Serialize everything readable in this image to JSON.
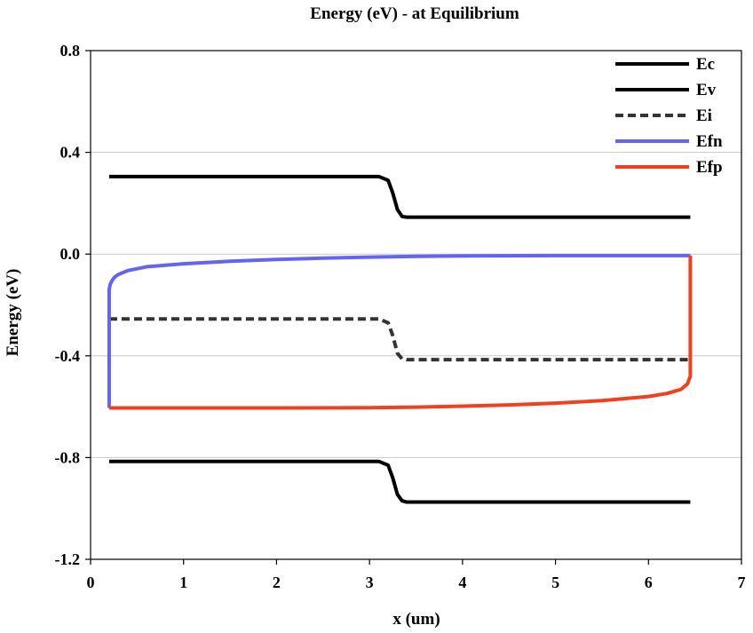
{
  "chart_data": {
    "type": "line",
    "title": "Energy (eV) - at Equilibrium",
    "xlabel": "x (um)",
    "ylabel": "Energy (eV)",
    "xlim": [
      0,
      7
    ],
    "ylim": [
      -1.2,
      0.8
    ],
    "xticks": [
      0,
      1,
      2,
      3,
      4,
      5,
      6,
      7
    ],
    "yticks": [
      0.8,
      0.4,
      0.0,
      -0.4,
      -0.8,
      -1.2
    ],
    "ytick_labels": [
      "0.8",
      "0.4",
      "0.0",
      "-0.4",
      "-0.8",
      "-1.2"
    ],
    "grid": "horizontal",
    "legend_position": "top-right",
    "series": [
      {
        "name": "Ec",
        "color": "#000000",
        "dash": "solid",
        "x": [
          0.2,
          3.1,
          3.2,
          3.25,
          3.3,
          3.35,
          3.4,
          6.45
        ],
        "y": [
          0.305,
          0.305,
          0.29,
          0.24,
          0.175,
          0.148,
          0.145,
          0.145
        ]
      },
      {
        "name": "Ev",
        "color": "#000000",
        "dash": "solid",
        "x": [
          0.2,
          3.1,
          3.2,
          3.25,
          3.3,
          3.35,
          3.4,
          6.45
        ],
        "y": [
          -0.815,
          -0.815,
          -0.83,
          -0.88,
          -0.945,
          -0.97,
          -0.975,
          -0.975
        ]
      },
      {
        "name": "Ei",
        "color": "#333333",
        "dash": "dashed",
        "x": [
          0.2,
          3.1,
          3.2,
          3.25,
          3.3,
          3.35,
          3.4,
          6.45
        ],
        "y": [
          -0.255,
          -0.255,
          -0.27,
          -0.32,
          -0.39,
          -0.412,
          -0.415,
          -0.415
        ]
      },
      {
        "name": "Efn",
        "color": "#6464f0",
        "dash": "solid",
        "x": [
          0.2,
          0.2,
          0.2,
          0.21,
          0.23,
          0.26,
          0.3,
          0.4,
          0.6,
          1.0,
          1.5,
          2.0,
          2.5,
          3.0,
          3.5,
          4.0,
          5.0,
          6.0,
          6.45
        ],
        "y": [
          -0.605,
          -0.18,
          -0.14,
          -0.12,
          -0.105,
          -0.09,
          -0.08,
          -0.065,
          -0.05,
          -0.038,
          -0.028,
          -0.021,
          -0.016,
          -0.012,
          -0.009,
          -0.007,
          -0.006,
          -0.006,
          -0.006
        ]
      },
      {
        "name": "Efp",
        "color": "#f04020",
        "dash": "solid",
        "x": [
          0.2,
          1.0,
          2.0,
          3.0,
          3.5,
          4.0,
          4.5,
          5.0,
          5.5,
          6.0,
          6.2,
          6.35,
          6.42,
          6.45,
          6.45,
          6.45
        ],
        "y": [
          -0.605,
          -0.605,
          -0.605,
          -0.604,
          -0.602,
          -0.598,
          -0.593,
          -0.586,
          -0.576,
          -0.56,
          -0.548,
          -0.532,
          -0.51,
          -0.48,
          -0.3,
          -0.006
        ]
      }
    ]
  }
}
